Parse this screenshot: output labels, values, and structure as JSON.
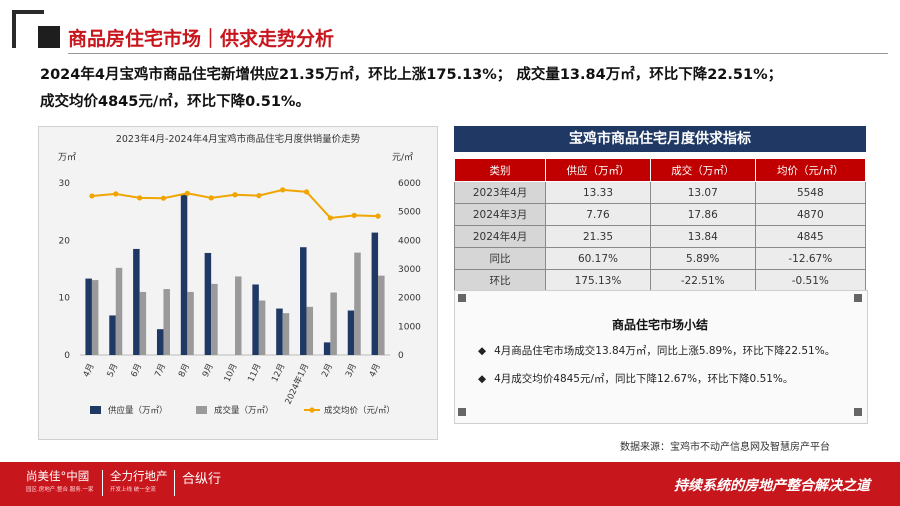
{
  "header": {
    "title": "商品房住宅市场｜供求走势分析"
  },
  "headline": {
    "line1": "2024年4月宝鸡市商品住宅新增供应21.35万㎡，环比上涨175.13%； 成交量13.84万㎡，环比下降22.51%；",
    "line2": "成交均价4845元/㎡，环比下降0.51%。"
  },
  "chart_data": {
    "type": "bar",
    "title": "2023年4月-2024年4月宝鸡市商品住宅月度供销量价走势",
    "left_unit": "万㎡",
    "right_unit": "元/㎡",
    "categories": [
      "4月",
      "5月",
      "6月",
      "7月",
      "8月",
      "9月",
      "10月",
      "11月",
      "12月",
      "2024年1月",
      "2月",
      "3月",
      "4月"
    ],
    "ylim_left": [
      0,
      30
    ],
    "yticks_left": [
      "0",
      "10",
      "20",
      "30"
    ],
    "ylim_right": [
      0,
      6000
    ],
    "yticks_right": [
      "0",
      "1000",
      "2000",
      "3000",
      "4000",
      "5000",
      "6000"
    ],
    "series": [
      {
        "name": "供应量（万㎡）",
        "kind": "bar",
        "axis": "left",
        "color": "#1f3864",
        "values": [
          13.33,
          6.9,
          18.5,
          4.5,
          28.0,
          17.8,
          0,
          12.3,
          8.1,
          18.8,
          2.2,
          7.76,
          21.35
        ]
      },
      {
        "name": "成交量（万㎡）",
        "kind": "bar",
        "axis": "left",
        "color": "#9a9a9a",
        "values": [
          13.07,
          15.2,
          11.0,
          11.5,
          11.0,
          12.4,
          13.7,
          9.5,
          7.3,
          8.4,
          10.9,
          17.86,
          13.84
        ]
      },
      {
        "name": "成交均价（元/㎡）",
        "kind": "line",
        "axis": "right",
        "color": "#f0a500",
        "values": [
          5548,
          5620,
          5480,
          5470,
          5640,
          5480,
          5590,
          5560,
          5760,
          5690,
          4780,
          4870,
          4845
        ]
      }
    ],
    "grid": false,
    "legend_position": "bottom"
  },
  "table": {
    "title": "宝鸡市商品住宅月度供求指标",
    "headers": [
      "类别",
      "供应（万㎡）",
      "成交（万㎡）",
      "均价（元/㎡）"
    ],
    "rows": [
      [
        "2023年4月",
        "13.33",
        "13.07",
        "5548"
      ],
      [
        "2024年3月",
        "7.76",
        "17.86",
        "4870"
      ],
      [
        "2024年4月",
        "21.35",
        "13.84",
        "4845"
      ],
      [
        "同比",
        "60.17%",
        "5.89%",
        "-12.67%"
      ],
      [
        "环比",
        "175.13%",
        "-22.51%",
        "-0.51%"
      ]
    ]
  },
  "summary": {
    "title": "商品住宅市场小结",
    "bullet_glyph": "◆",
    "bullets": [
      "4月商品住宅市场成交13.84万㎡，同比上涨5.89%，环比下降22.51%。",
      "4月成交均价4845元/㎡，同比下降12.67%，环比下降0.51%。"
    ]
  },
  "source": "数据来源：宝鸡市不动产信息网及智慧房产平台",
  "footer": {
    "logo1": "尚美佳°中國",
    "logo1_sub": "园区.房地产.整合.服务.一家",
    "logo2": "全力行地产",
    "logo2_sub": "开发上线 统一全流",
    "logo3": "合纵行",
    "slogan": "持续系统的房地产整合解决之道"
  },
  "colors": {
    "brand_red": "#c8161d",
    "navy": "#1f3864",
    "table_header_red": "#c00000"
  }
}
